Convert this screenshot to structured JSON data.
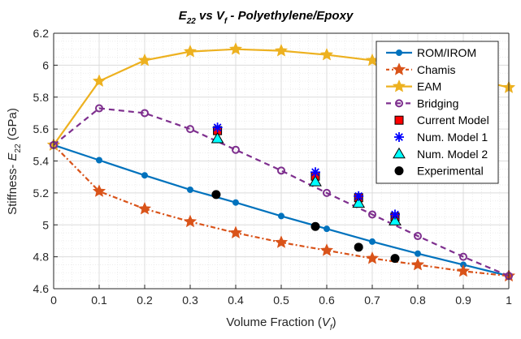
{
  "chart_data": {
    "type": "line",
    "title": {
      "main": "E",
      "main_sub": "22",
      "vs": " vs V",
      "vs_sub": "f",
      "rest": " -  Polyethylene/Epoxy"
    },
    "xlabel": {
      "prefix": "Volume Fraction (",
      "var": "V",
      "sub": "f",
      "suffix": ")"
    },
    "ylabel": {
      "prefix": "Stiffness- ",
      "var": "E",
      "sub": "22",
      "suffix": " (GPa)"
    },
    "xlim": [
      0,
      1
    ],
    "ylim": [
      4.6,
      6.2
    ],
    "xticks": [
      "0",
      "0.1",
      "0.2",
      "0.3",
      "0.4",
      "0.5",
      "0.6",
      "0.7",
      "0.8",
      "0.9",
      "1"
    ],
    "yticks": [
      "4.6",
      "4.8",
      "5",
      "5.2",
      "5.4",
      "5.6",
      "5.8",
      "6",
      "6.2"
    ],
    "grid": true,
    "minor_grid": true,
    "legend_position": "top-right",
    "x": [
      0,
      0.1,
      0.2,
      0.3,
      0.4,
      0.5,
      0.6,
      0.7,
      0.8,
      0.9,
      1.0
    ],
    "series": [
      {
        "name": "ROM/IROM",
        "color": "#0072BD",
        "style": "solid",
        "marker": "dot",
        "values": [
          5.5,
          5.405,
          5.31,
          5.22,
          5.14,
          5.055,
          4.975,
          4.895,
          4.82,
          4.75,
          4.68
        ]
      },
      {
        "name": "Chamis",
        "color": "#D95319",
        "style": "dashdot",
        "marker": "star",
        "values": [
          5.5,
          5.21,
          5.1,
          5.02,
          4.95,
          4.89,
          4.84,
          4.79,
          4.75,
          4.71,
          4.68
        ]
      },
      {
        "name": "EAM",
        "color": "#EDB120",
        "style": "solid",
        "marker": "star",
        "values": [
          5.5,
          5.9,
          6.03,
          6.085,
          6.1,
          6.09,
          6.065,
          6.03,
          5.99,
          5.93,
          5.86
        ]
      },
      {
        "name": "Bridging",
        "color": "#7E2F8E",
        "style": "dashed",
        "marker": "circle",
        "values": [
          5.5,
          5.73,
          5.7,
          5.6,
          5.47,
          5.34,
          5.2,
          5.065,
          4.93,
          4.8,
          4.68
        ]
      }
    ],
    "scatter_series": [
      {
        "name": "Current Model",
        "marker": "square",
        "color": "#FF0000",
        "points": [
          [
            0.36,
            5.59
          ],
          [
            0.575,
            5.305
          ],
          [
            0.67,
            5.17
          ],
          [
            0.75,
            5.05
          ]
        ]
      },
      {
        "name": "Num. Model 1",
        "marker": "asterisk",
        "color": "#0000FF",
        "points": [
          [
            0.36,
            5.61
          ],
          [
            0.575,
            5.33
          ],
          [
            0.67,
            5.18
          ],
          [
            0.75,
            5.065
          ]
        ]
      },
      {
        "name": "Num. Model 2",
        "marker": "triangle",
        "color": "#00FFFF",
        "points": [
          [
            0.36,
            5.54
          ],
          [
            0.575,
            5.27
          ],
          [
            0.67,
            5.135
          ],
          [
            0.75,
            5.025
          ]
        ]
      },
      {
        "name": "Experimental",
        "marker": "filled-circle",
        "color": "#000000",
        "points": [
          [
            0.357,
            5.19
          ],
          [
            0.575,
            4.99
          ],
          [
            0.67,
            4.86
          ],
          [
            0.75,
            4.79
          ]
        ]
      }
    ]
  }
}
